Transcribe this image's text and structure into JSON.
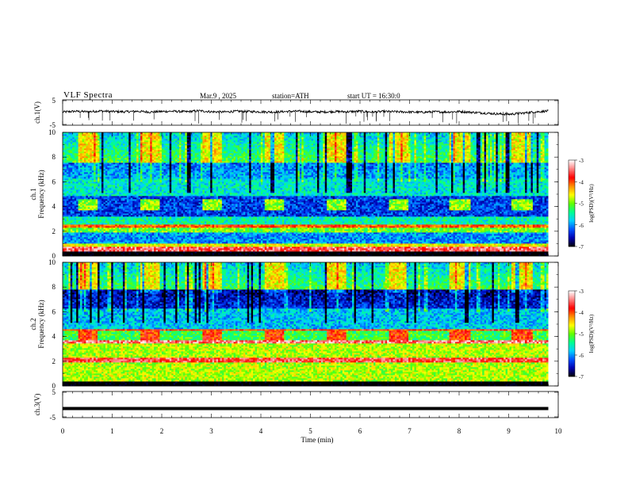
{
  "header": {
    "title": "VLF Spectra",
    "date": "Mar.9 , 2025",
    "station": "station=ATH",
    "start_ut": "start UT = 16:30:0"
  },
  "chart_data": [
    {
      "id": "ch1-voltage",
      "type": "line",
      "ylabel": "ch.1(V)",
      "yticks": [
        "5",
        "-5"
      ],
      "ylim": [
        -5,
        5
      ],
      "xlim": [
        0,
        10
      ],
      "trace_color": "#000000",
      "series": [
        {
          "x": [
            0,
            0.25,
            0.5,
            0.75,
            1,
            1.25,
            1.5,
            1.75,
            2,
            2.25,
            2.5,
            2.75,
            3,
            3.25,
            3.5,
            3.75,
            4,
            4.25,
            4.5,
            4.75,
            5,
            5.25,
            5.5,
            5.75,
            6,
            6.25,
            6.5,
            6.75,
            7,
            7.25,
            7.5,
            7.75,
            8,
            8.25,
            8.5,
            8.75,
            9,
            9.25,
            9.5,
            9.8
          ],
          "values": [
            0.2,
            0.5,
            0.3,
            0.6,
            0.4,
            0.3,
            0.5,
            0.2,
            0.4,
            0.5,
            0.3,
            0.7,
            0.3,
            0.2,
            0.5,
            0.4,
            0.3,
            0.2,
            0.4,
            0.5,
            0.3,
            0.2,
            0.4,
            0.3,
            0.5,
            0.2,
            0.4,
            0.3,
            0.2,
            0.1,
            0.3,
            0.2,
            0.4,
            0.1,
            -0.2,
            -0.5,
            -0.7,
            -0.3,
            0.2,
            0.6
          ]
        }
      ]
    },
    {
      "id": "ch1-spectrogram",
      "type": "heatmap",
      "ylabel": "ch.1 Frequency (kHz)",
      "ylabel_line1": "ch.1",
      "ylabel_line2": "Frequency (kHz)",
      "xlim": [
        0,
        10
      ],
      "ylim": [
        0,
        10
      ],
      "yticks": [
        "10",
        "8",
        "6",
        "4",
        "2",
        "0"
      ],
      "colorbar": {
        "label": "log(PSD)(V²/Hz)",
        "range": [
          -7,
          -3
        ],
        "ticks": [
          "-3",
          "-4",
          "-5",
          "-6",
          "-7"
        ],
        "colors": [
          "#000000",
          "#0000b0",
          "#0050ff",
          "#00d0ff",
          "#00ff90",
          "#60ff00",
          "#ffff00",
          "#ff9000",
          "#ff0000",
          "#ff8080",
          "#ffffff"
        ]
      },
      "burst_intervals_min": [
        [
          0.3,
          0.7
        ],
        [
          1.55,
          1.95
        ],
        [
          2.8,
          3.2
        ],
        [
          4.05,
          4.45
        ],
        [
          5.3,
          5.7
        ],
        [
          6.55,
          6.95
        ],
        [
          7.8,
          8.2
        ],
        [
          9.05,
          9.45
        ]
      ],
      "bands": [
        {
          "f": [
            0,
            0.3
          ],
          "level": -7.2
        },
        {
          "f": [
            0.3,
            0.7
          ],
          "level": -3.5
        },
        {
          "f": [
            0.7,
            1.0
          ],
          "level": -4.6
        },
        {
          "f": [
            1.0,
            1.9
          ],
          "level": -6.0
        },
        {
          "f": [
            1.9,
            2.3
          ],
          "level": -5.0
        },
        {
          "f": [
            2.3,
            2.5
          ],
          "level": -4.0
        },
        {
          "f": [
            2.5,
            3.2
          ],
          "level": -5.5
        },
        {
          "f": [
            3.2,
            4.8
          ],
          "level": -6.3
        },
        {
          "f": [
            4.8,
            6.2
          ],
          "level": -5.6
        },
        {
          "f": [
            6.2,
            7.5
          ],
          "level": -5.9
        },
        {
          "f": [
            7.5,
            10
          ],
          "level": -4.9
        }
      ]
    },
    {
      "id": "ch2-spectrogram",
      "type": "heatmap",
      "ylabel": "ch.2 Frequency (kHz)",
      "ylabel_line1": "ch.2",
      "ylabel_line2": "Frequency (kHz)",
      "xlim": [
        0,
        10
      ],
      "ylim": [
        0,
        10
      ],
      "yticks": [
        "10",
        "8",
        "6",
        "4",
        "2",
        "0"
      ],
      "colorbar": {
        "label": "log(PSD)(V²/Hz)",
        "range": [
          -7,
          -3
        ],
        "ticks": [
          "-3",
          "-4",
          "-5",
          "-6",
          "-7"
        ],
        "colors": [
          "#000000",
          "#0000b0",
          "#0050ff",
          "#00d0ff",
          "#00ff90",
          "#60ff00",
          "#ffff00",
          "#ff9000",
          "#ff0000",
          "#ff8080",
          "#ffffff"
        ]
      },
      "burst_intervals_min": [
        [
          0.3,
          0.7
        ],
        [
          1.55,
          1.95
        ],
        [
          2.8,
          3.2
        ],
        [
          4.05,
          4.45
        ],
        [
          5.3,
          5.7
        ],
        [
          6.55,
          6.95
        ],
        [
          7.8,
          8.2
        ],
        [
          9.05,
          9.45
        ]
      ],
      "bands": [
        {
          "f": [
            0,
            0.3
          ],
          "level": -7.2
        },
        {
          "f": [
            0.3,
            1.8
          ],
          "level": -4.8
        },
        {
          "f": [
            1.8,
            2.2
          ],
          "level": -3.6
        },
        {
          "f": [
            2.2,
            3.4
          ],
          "level": -4.8
        },
        {
          "f": [
            3.4,
            3.6
          ],
          "level": -3.4
        },
        {
          "f": [
            3.6,
            4.4
          ],
          "level": -5.2
        },
        {
          "f": [
            4.4,
            4.6
          ],
          "level": -3.8
        },
        {
          "f": [
            4.6,
            6.2
          ],
          "level": -5.8
        },
        {
          "f": [
            6.2,
            7.8
          ],
          "level": -6.4
        },
        {
          "f": [
            7.8,
            10
          ],
          "level": -4.9
        }
      ]
    },
    {
      "id": "ch3-voltage",
      "type": "line",
      "ylabel": "ch.3(V)",
      "yticks": [
        "5",
        "-5"
      ],
      "ylim": [
        -5,
        5
      ],
      "xlim": [
        0,
        10
      ],
      "trace_color": "#000000",
      "series": [
        {
          "x": [
            0,
            9.8
          ],
          "values": [
            -1.5,
            -1.5
          ]
        }
      ]
    }
  ],
  "xaxis": {
    "label": "Time (min)",
    "ticks": [
      "0",
      "1",
      "2",
      "3",
      "4",
      "5",
      "6",
      "7",
      "8",
      "9",
      "10"
    ],
    "range": [
      0,
      10
    ]
  }
}
